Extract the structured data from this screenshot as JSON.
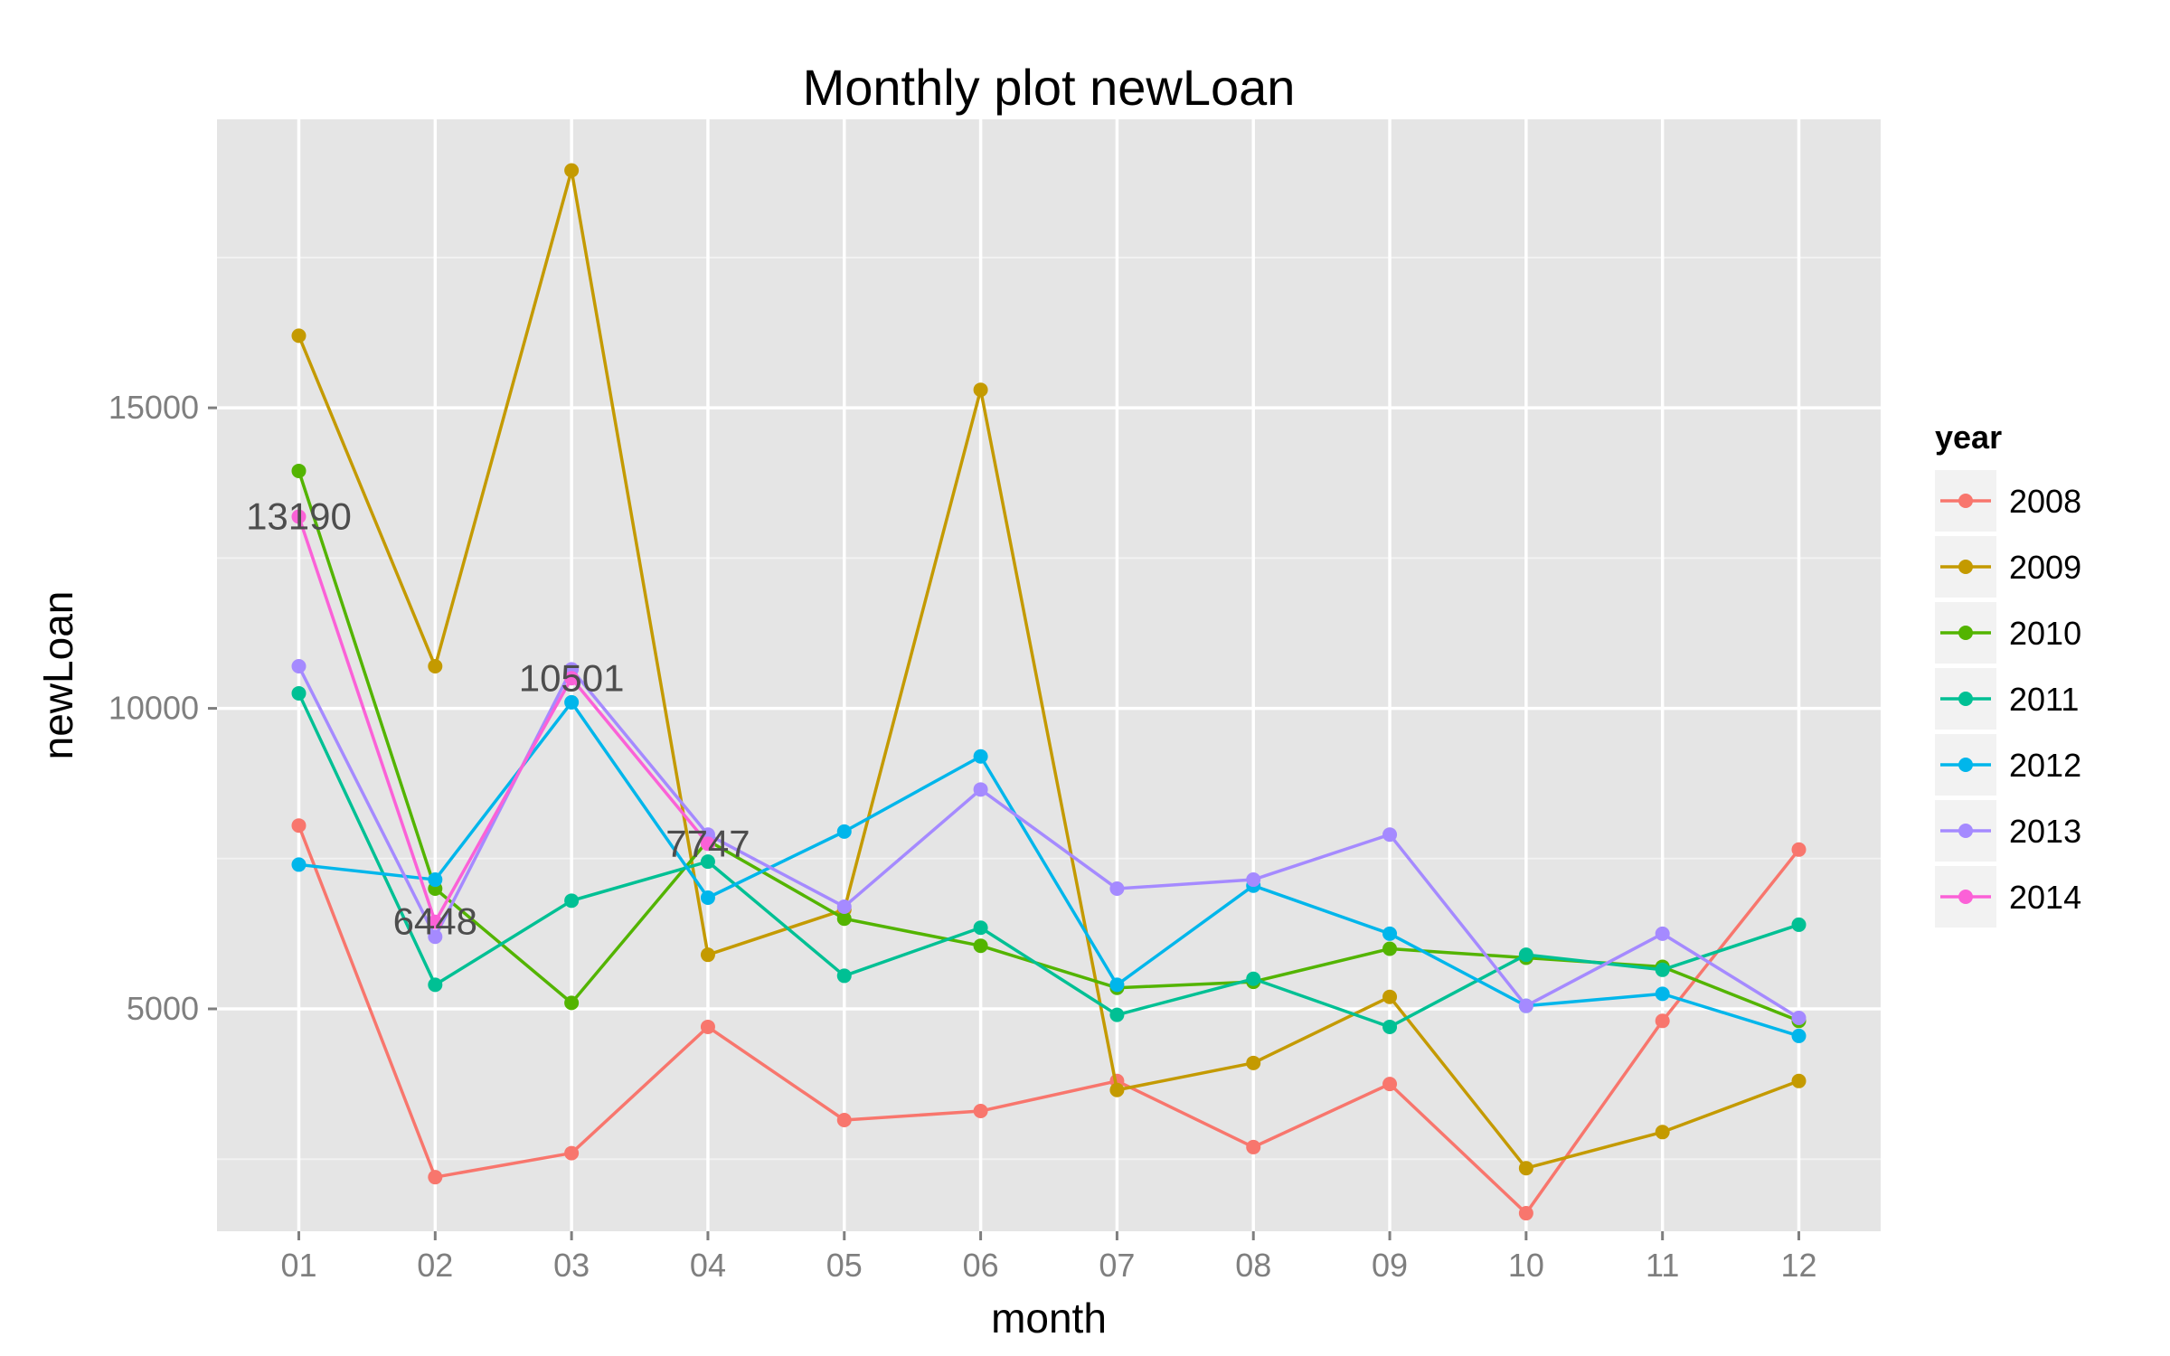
{
  "chart_data": {
    "type": "line",
    "title": "Monthly plot newLoan",
    "xlabel": "month",
    "ylabel": "newLoan",
    "categories": [
      "01",
      "02",
      "03",
      "04",
      "05",
      "06",
      "07",
      "08",
      "09",
      "10",
      "11",
      "12"
    ],
    "ylim": [
      1300,
      19800
    ],
    "yticks": [
      5000,
      10000,
      15000
    ],
    "grid": true,
    "legend": {
      "title": "year",
      "placement": "right"
    },
    "series": [
      {
        "name": "2008",
        "color": "#F8766D",
        "values": [
          8050,
          2200,
          2600,
          4700,
          3150,
          3300,
          3800,
          2700,
          3750,
          1600,
          4800,
          7650
        ]
      },
      {
        "name": "2009",
        "color": "#C49A00",
        "values": [
          16200,
          10700,
          18950,
          5900,
          6650,
          15300,
          3650,
          4100,
          5200,
          2350,
          2950,
          3800
        ]
      },
      {
        "name": "2010",
        "color": "#53B400",
        "values": [
          13950,
          7000,
          5100,
          7800,
          6500,
          6050,
          5350,
          5450,
          6000,
          5850,
          5700,
          4800
        ]
      },
      {
        "name": "2011",
        "color": "#00C094",
        "values": [
          10250,
          5400,
          6800,
          7450,
          5550,
          6350,
          4900,
          5500,
          4700,
          5900,
          5650,
          6400
        ]
      },
      {
        "name": "2012",
        "color": "#00B6EB",
        "values": [
          7400,
          7150,
          10100,
          6850,
          7950,
          9200,
          5400,
          7050,
          6250,
          5050,
          5250,
          4550
        ]
      },
      {
        "name": "2013",
        "color": "#A58AFF",
        "values": [
          10700,
          6200,
          10650,
          7900,
          6700,
          8650,
          7000,
          7150,
          7900,
          5050,
          6250,
          4850
        ]
      },
      {
        "name": "2014",
        "color": "#FB61D7",
        "values": [
          13190,
          6448,
          10501,
          7747,
          null,
          null,
          null,
          null,
          null,
          null,
          null,
          null
        ]
      }
    ],
    "annotations": [
      {
        "text": "13190",
        "month": "01",
        "value": 13190
      },
      {
        "text": "6448",
        "month": "02",
        "value": 6448
      },
      {
        "text": "10501",
        "month": "03",
        "value": 10501
      },
      {
        "text": "7747",
        "month": "04",
        "value": 7747
      }
    ]
  }
}
